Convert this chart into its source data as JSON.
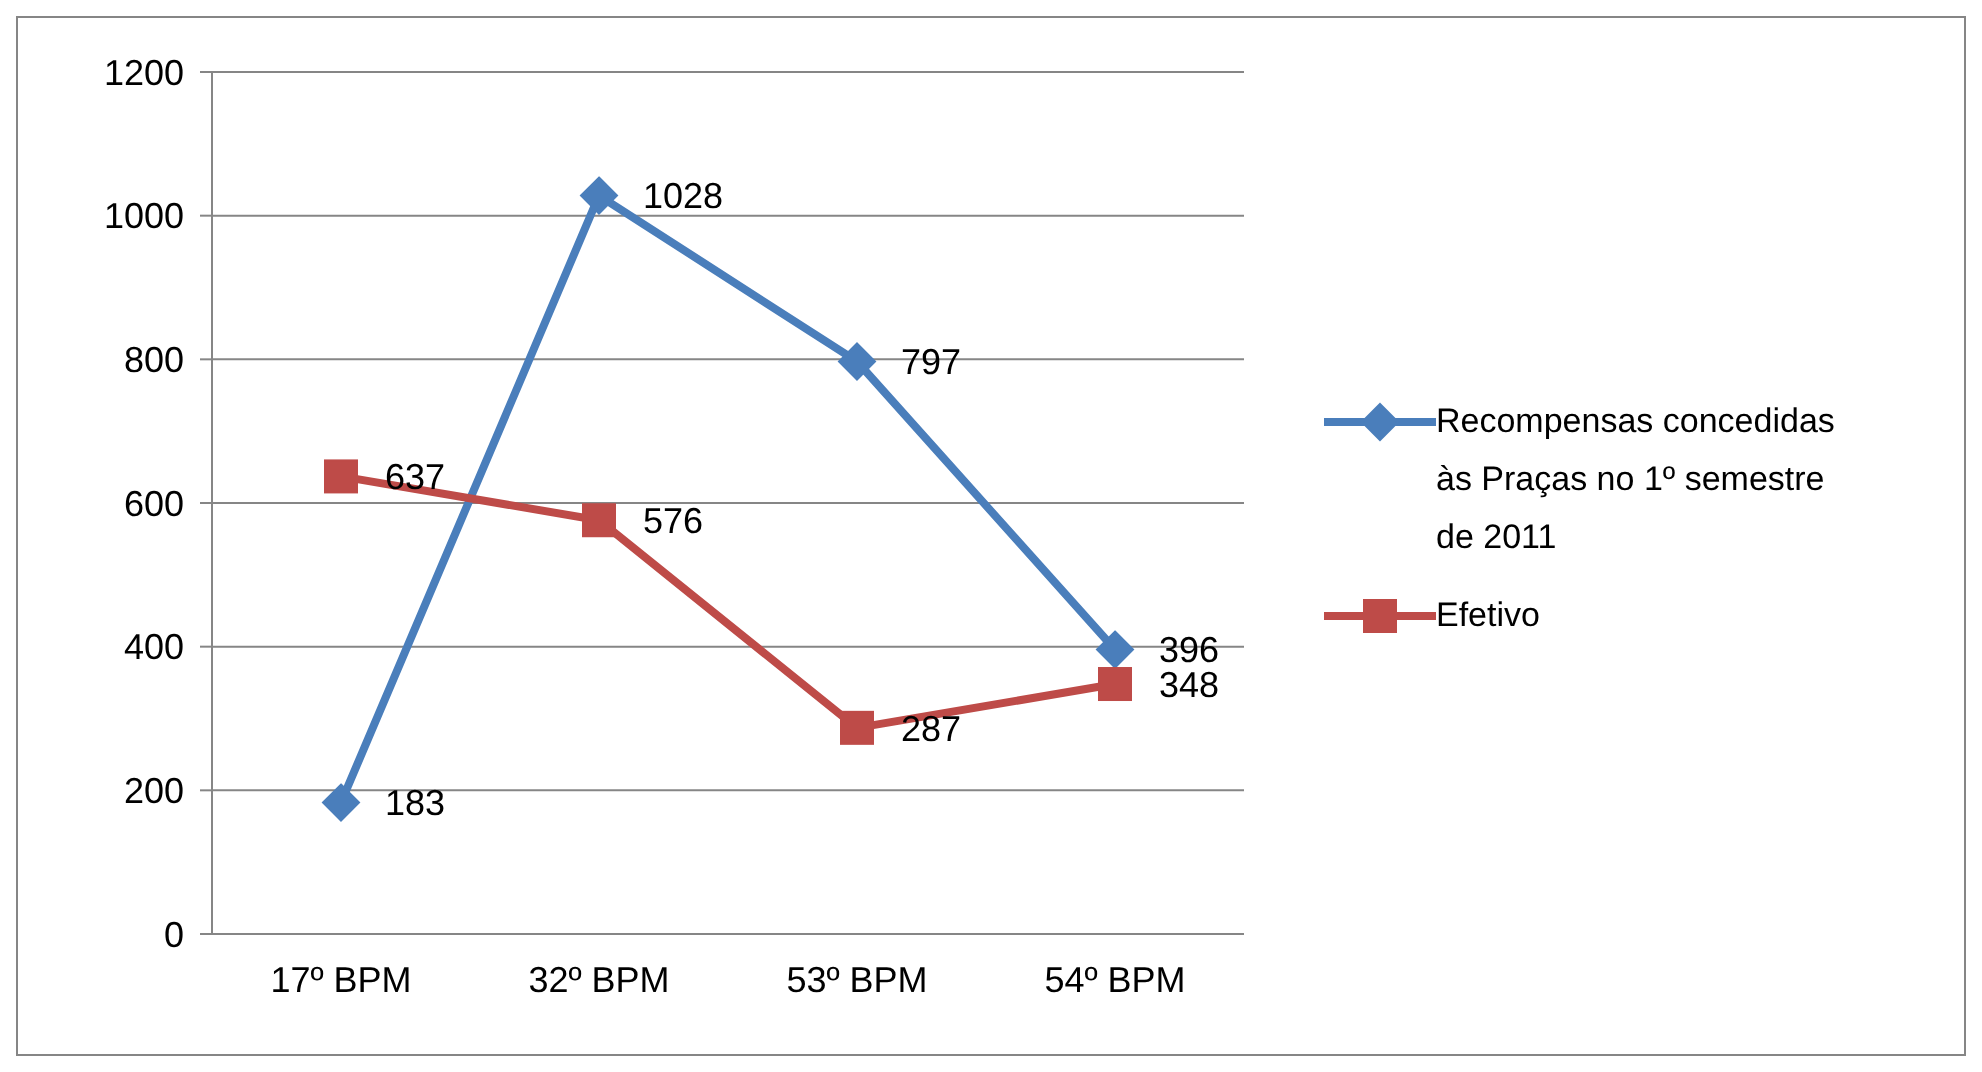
{
  "chart_data": {
    "type": "line",
    "categories": [
      "17º BPM",
      "32º BPM",
      "53º BPM",
      "54º BPM"
    ],
    "series": [
      {
        "name": "Recompensas concedidas às Praças no 1º semestre de 2011",
        "color": "#4a7ebb",
        "marker": "diamond",
        "values": [
          183,
          1028,
          797,
          396
        ]
      },
      {
        "name": "Efetivo",
        "color": "#be4b48",
        "marker": "square",
        "values": [
          637,
          576,
          287,
          348
        ]
      }
    ],
    "ylim": [
      0,
      1200
    ],
    "yticks": [
      0,
      200,
      400,
      600,
      800,
      1000,
      1200
    ],
    "grid": "y",
    "legend": "right",
    "data_labels": true
  }
}
